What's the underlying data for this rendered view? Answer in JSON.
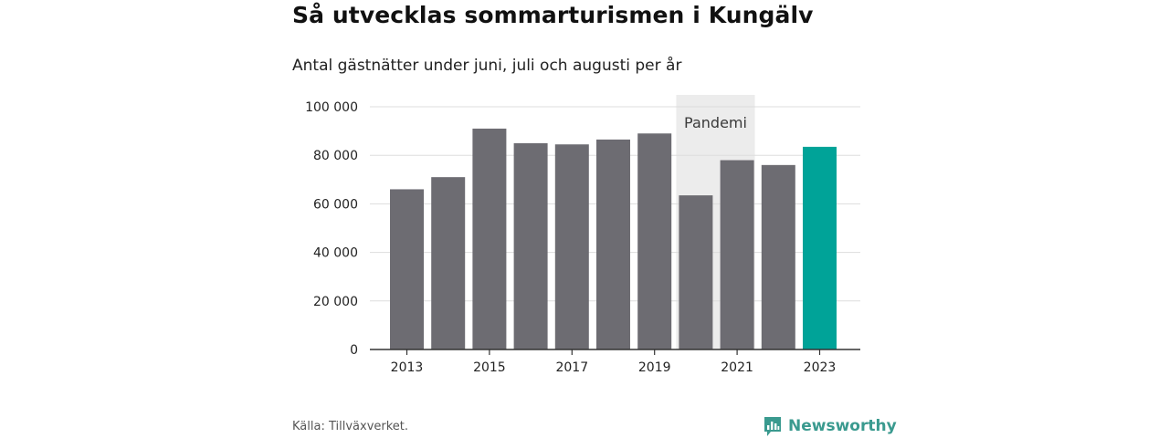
{
  "title": "Så utvecklas sommarturismen i Kungälv",
  "subtitle": "Antal gästnätter under juni, juli och augusti per år",
  "source": "Källa: Tillväxverket.",
  "brand": {
    "name": "Newsworthy",
    "icon": "newsworthy-logo-icon"
  },
  "colors": {
    "bar": "#6d6c72",
    "highlight": "#00a398",
    "pandemic_band": "#ececec",
    "grid": "#dddddd",
    "axis": "#333333",
    "brand": "#3a9a8f"
  },
  "chart_data": {
    "type": "bar",
    "categories": [
      "2013",
      "2014",
      "2015",
      "2016",
      "2017",
      "2018",
      "2019",
      "2020",
      "2021",
      "2022",
      "2023"
    ],
    "values": [
      66000,
      71000,
      91000,
      85000,
      84500,
      86500,
      89000,
      63500,
      78000,
      76000,
      83500
    ],
    "highlight_category": "2023",
    "x_tick_labels": [
      "2013",
      "2015",
      "2017",
      "2019",
      "2021",
      "2023"
    ],
    "y_ticks": [
      0,
      20000,
      40000,
      60000,
      80000,
      100000
    ],
    "y_tick_labels": [
      "0",
      "20 000",
      "40 000",
      "60 000",
      "80 000",
      "100 000"
    ],
    "ylim": [
      0,
      100000
    ],
    "grid": true,
    "xlabel": "",
    "ylabel": "",
    "annotation": {
      "label": "Pandemi",
      "from": "2020",
      "to": "2021"
    }
  }
}
